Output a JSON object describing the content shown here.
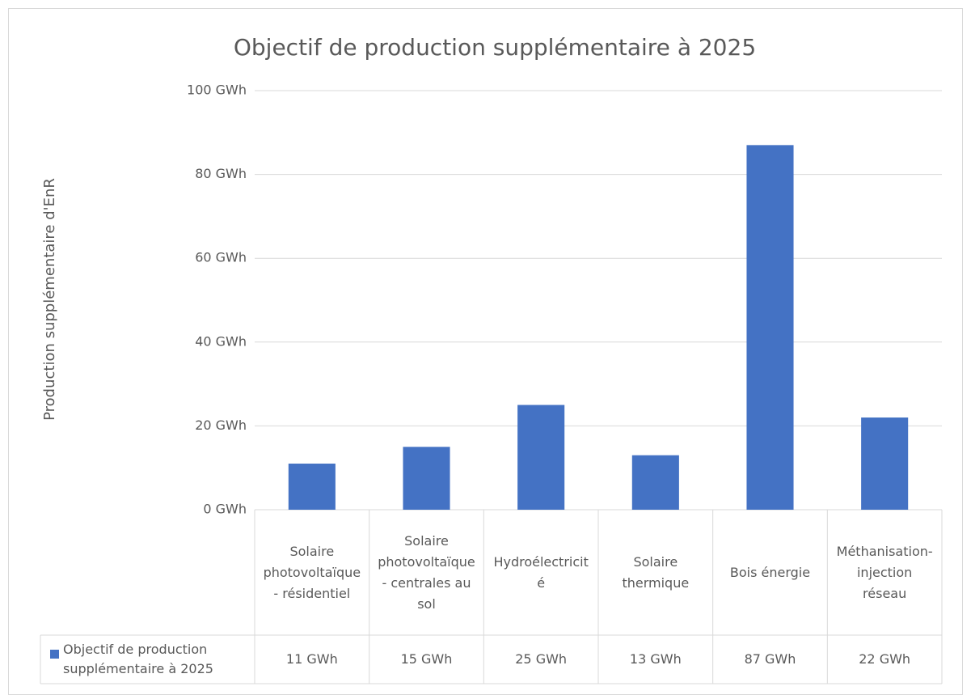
{
  "chart_data": {
    "type": "bar",
    "title": "Objectif de production supplémentaire à 2025",
    "y_axis_label": "Production supplémentaire d'EnR",
    "categories": [
      "Solaire photovoltaïque - résidentiel",
      "Solaire photovoltaïque - centrales au sol",
      "Hydroélectricité",
      "Solaire thermique",
      "Bois énergie",
      "Méthanisation-injection réseau"
    ],
    "series": [
      {
        "name": "Objectif de production supplémentaire à 2025",
        "color": "#4472c4",
        "values": [
          11,
          15,
          25,
          13,
          87,
          22
        ],
        "value_labels": [
          "11 GWh",
          "15 GWh",
          "25 GWh",
          "13 GWh",
          "87 GWh",
          "22 GWh"
        ]
      }
    ],
    "ylim": [
      0,
      100
    ],
    "yticks": [
      {
        "value": 0,
        "label": "0 GWh"
      },
      {
        "value": 20,
        "label": "20 GWh"
      },
      {
        "value": 40,
        "label": "40 GWh"
      },
      {
        "value": 60,
        "label": "60 GWh"
      },
      {
        "value": 80,
        "label": "80 GWh"
      },
      {
        "value": 100,
        "label": "100 GWh"
      }
    ],
    "grid": true
  }
}
